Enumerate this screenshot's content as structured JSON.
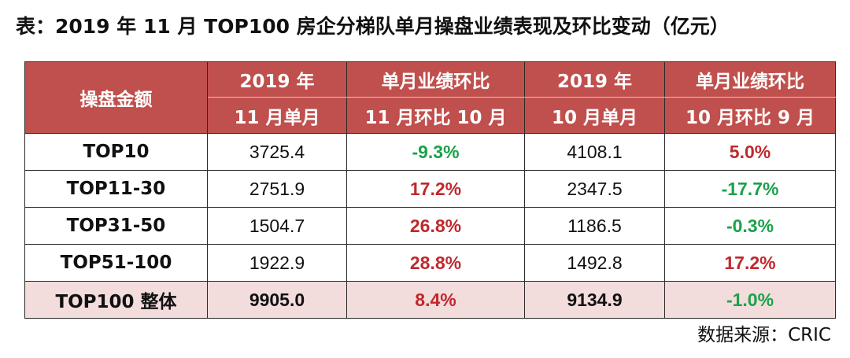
{
  "title": "表：2019 年 11 月 TOP100 房企分梯队单月操盘业绩表现及环比变动（亿元）",
  "table": {
    "corner_header": "操盘金额",
    "columns": [
      {
        "line1": "2019 年",
        "line2": "11 月单月"
      },
      {
        "line1": "单月业绩环比",
        "line2": "11 月环比 10 月"
      },
      {
        "line1": "2019 年",
        "line2": "10 月单月"
      },
      {
        "line1": "单月业绩环比",
        "line2": "10 月环比 9 月"
      }
    ],
    "rows": [
      {
        "label": "TOP10",
        "nov": "3725.4",
        "mom_nov": "-9.3%",
        "mom_nov_color": "#1aa24a",
        "oct": "4108.1",
        "mom_oct": "5.0%",
        "mom_oct_color": "#c0282d"
      },
      {
        "label": "TOP11-30",
        "nov": "2751.9",
        "mom_nov": "17.2%",
        "mom_nov_color": "#c0282d",
        "oct": "2347.5",
        "mom_oct": "-17.7%",
        "mom_oct_color": "#1aa24a"
      },
      {
        "label": "TOP31-50",
        "nov": "1504.7",
        "mom_nov": "26.8%",
        "mom_nov_color": "#c0282d",
        "oct": "1186.5",
        "mom_oct": "-0.3%",
        "mom_oct_color": "#1aa24a"
      },
      {
        "label": "TOP51-100",
        "nov": "1922.9",
        "mom_nov": "28.8%",
        "mom_nov_color": "#c0282d",
        "oct": "1492.8",
        "mom_oct": "17.2%",
        "mom_oct_color": "#c0282d"
      },
      {
        "label": "TOP100 整体",
        "nov": "9905.0",
        "mom_nov": "8.4%",
        "mom_nov_color": "#c0282d",
        "oct": "9134.9",
        "mom_oct": "-1.0%",
        "mom_oct_color": "#1aa24a"
      }
    ]
  },
  "source": "数据来源：CRIC",
  "colors": {
    "header_bg": "#c0504d",
    "total_row_bg": "#f3dcdc",
    "positive": "#c0282d",
    "negative": "#1aa24a"
  }
}
